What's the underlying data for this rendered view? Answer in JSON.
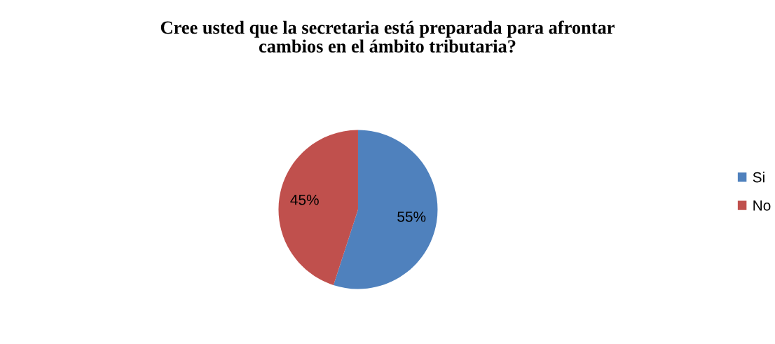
{
  "chart_data": {
    "type": "pie",
    "title": "Cree usted que la secretaria está preparada para afrontar\ncambios en el ámbito tributaria?",
    "categories": [
      "Si",
      "No"
    ],
    "values": [
      55,
      45
    ],
    "colors": [
      "#4f81bd",
      "#c0504d"
    ],
    "value_labels": [
      "55%",
      "45%"
    ],
    "legend": "right"
  }
}
